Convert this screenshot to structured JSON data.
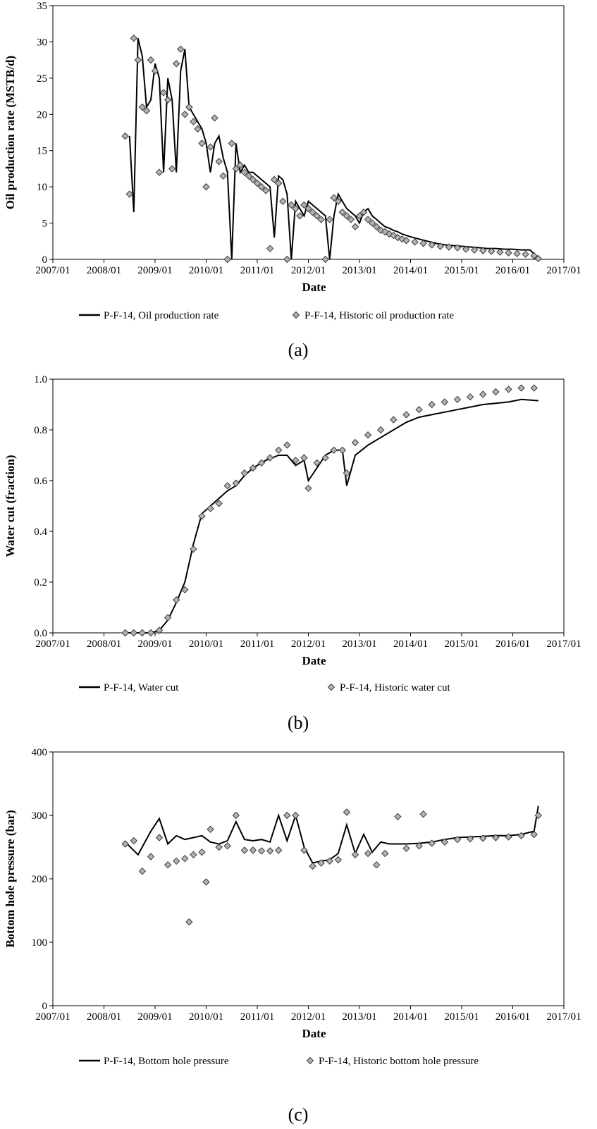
{
  "chart_data": [
    {
      "type": "line",
      "panel": "(a)",
      "xlabel": "Date",
      "ylabel": "Oil production rate (MSTB/d)",
      "x_ticks": [
        "2007/01",
        "2008/01",
        "2009/01",
        "2010/01",
        "2011/01",
        "2012/01",
        "2013/01",
        "2014/01",
        "2015/01",
        "2016/01",
        "2017/01"
      ],
      "y_ticks": [
        "0",
        "5",
        "10",
        "15",
        "20",
        "25",
        "30",
        "35"
      ],
      "xlim": [
        "2007/01",
        "2017/01"
      ],
      "ylim": [
        0,
        35
      ],
      "grid": false,
      "legend_position": "bottom",
      "series": [
        {
          "name": "P-F-14, Oil production rate",
          "style": "line",
          "x": [
            "2008/07",
            "2008/08",
            "2008/09",
            "2008/10",
            "2008/11",
            "2008/12",
            "2009/01",
            "2009/02",
            "2009/03",
            "2009/04",
            "2009/05",
            "2009/06",
            "2009/07",
            "2009/08",
            "2009/09",
            "2009/10",
            "2009/11",
            "2009/12",
            "2010/01",
            "2010/02",
            "2010/03",
            "2010/04",
            "2010/05",
            "2010/06",
            "2010/07",
            "2010/08",
            "2010/09",
            "2010/10",
            "2010/11",
            "2010/12",
            "2011/01",
            "2011/02",
            "2011/03",
            "2011/04",
            "2011/05",
            "2011/06",
            "2011/07",
            "2011/08",
            "2011/09",
            "2011/10",
            "2011/11",
            "2011/12",
            "2012/01",
            "2012/02",
            "2012/03",
            "2012/04",
            "2012/05",
            "2012/06",
            "2012/07",
            "2012/08",
            "2012/09",
            "2012/10",
            "2012/11",
            "2012/12",
            "2013/01",
            "2013/02",
            "2013/03",
            "2013/04",
            "2013/05",
            "2013/06",
            "2013/07",
            "2013/08",
            "2013/09",
            "2013/10",
            "2013/11",
            "2013/12",
            "2014/01",
            "2014/03",
            "2014/05",
            "2014/07",
            "2014/09",
            "2014/11",
            "2015/01",
            "2015/03",
            "2015/05",
            "2015/07",
            "2015/09",
            "2015/11",
            "2016/01",
            "2016/03",
            "2016/05",
            "2016/07"
          ],
          "y": [
            17,
            6.5,
            30.5,
            28,
            21,
            22,
            27,
            25,
            12,
            25,
            22,
            12,
            26,
            29,
            21,
            20,
            19,
            18,
            16,
            12,
            16,
            17,
            14,
            12,
            0,
            16,
            12,
            13,
            12,
            12,
            11.5,
            11,
            10.5,
            10,
            3,
            11.5,
            11,
            9,
            0,
            8,
            7,
            6,
            8,
            7.5,
            7,
            6.5,
            6,
            0,
            6,
            9,
            8,
            7,
            6.5,
            6,
            5,
            6.5,
            7,
            6,
            5.5,
            5,
            4.5,
            4.3,
            4,
            3.8,
            3.5,
            3.3,
            3.1,
            2.8,
            2.5,
            2.2,
            2,
            1.9,
            1.8,
            1.7,
            1.6,
            1.5,
            1.5,
            1.4,
            1.4,
            1.3,
            1.3,
            0.2
          ]
        },
        {
          "name": "P-F-14, Historic oil production rate",
          "style": "marker",
          "x": [
            "2008/06",
            "2008/07",
            "2008/08",
            "2008/09",
            "2008/10",
            "2008/11",
            "2008/12",
            "2009/01",
            "2009/02",
            "2009/03",
            "2009/04",
            "2009/05",
            "2009/06",
            "2009/07",
            "2009/08",
            "2009/09",
            "2009/10",
            "2009/11",
            "2009/12",
            "2010/01",
            "2010/02",
            "2010/03",
            "2010/04",
            "2010/05",
            "2010/06",
            "2010/07",
            "2010/08",
            "2010/09",
            "2010/10",
            "2010/11",
            "2010/12",
            "2011/01",
            "2011/02",
            "2011/03",
            "2011/04",
            "2011/05",
            "2011/06",
            "2011/07",
            "2011/08",
            "2011/09",
            "2011/10",
            "2011/11",
            "2011/12",
            "2012/01",
            "2012/02",
            "2012/03",
            "2012/04",
            "2012/05",
            "2012/06",
            "2012/07",
            "2012/08",
            "2012/09",
            "2012/10",
            "2012/11",
            "2012/12",
            "2013/01",
            "2013/02",
            "2013/03",
            "2013/04",
            "2013/05",
            "2013/06",
            "2013/07",
            "2013/08",
            "2013/09",
            "2013/10",
            "2013/11",
            "2013/12",
            "2014/02",
            "2014/04",
            "2014/06",
            "2014/08",
            "2014/10",
            "2014/12",
            "2015/02",
            "2015/04",
            "2015/06",
            "2015/08",
            "2015/10",
            "2015/12",
            "2016/02",
            "2016/04",
            "2016/06",
            "2016/07"
          ],
          "y": [
            17,
            9,
            30.5,
            27.5,
            21,
            20.5,
            27.5,
            26,
            12,
            23,
            22,
            12.5,
            27,
            29,
            20,
            21,
            19,
            18,
            16,
            10,
            15.5,
            19.5,
            13.5,
            11.5,
            0,
            16,
            12.5,
            13,
            12,
            11.5,
            11,
            10.5,
            10,
            9.5,
            1.5,
            11,
            10.5,
            8,
            0,
            7.5,
            7,
            6,
            7.5,
            7,
            6.5,
            6,
            5.5,
            0,
            5.5,
            8.5,
            8,
            6.5,
            6,
            5.5,
            4.5,
            6,
            6.5,
            5.5,
            5,
            4.5,
            4,
            3.8,
            3.5,
            3.3,
            3,
            2.8,
            2.6,
            2.4,
            2.2,
            2,
            1.8,
            1.7,
            1.6,
            1.4,
            1.3,
            1.2,
            1.1,
            1.0,
            0.9,
            0.8,
            0.7,
            0.5,
            0.1
          ]
        }
      ]
    },
    {
      "type": "line",
      "panel": "(b)",
      "xlabel": "Date",
      "ylabel": "Water cut (fraction)",
      "x_ticks": [
        "2007/01",
        "2008/01",
        "2009/01",
        "2010/01",
        "2011/01",
        "2012/01",
        "2013/01",
        "2014/01",
        "2015/01",
        "2016/01",
        "2017/01"
      ],
      "y_ticks": [
        "0.0",
        "0.2",
        "0.4",
        "0.6",
        "0.8",
        "1.0"
      ],
      "xlim": [
        "2007/01",
        "2017/01"
      ],
      "ylim": [
        0,
        1.0
      ],
      "grid": false,
      "legend_position": "bottom",
      "series": [
        {
          "name": "P-F-14, Water cut",
          "style": "line",
          "x": [
            "2008/06",
            "2008/09",
            "2008/12",
            "2009/02",
            "2009/04",
            "2009/06",
            "2009/08",
            "2009/10",
            "2009/12",
            "2010/02",
            "2010/04",
            "2010/06",
            "2010/08",
            "2010/10",
            "2010/12",
            "2011/03",
            "2011/06",
            "2011/08",
            "2011/10",
            "2011/12",
            "2012/01",
            "2012/03",
            "2012/05",
            "2012/07",
            "2012/09",
            "2012/10",
            "2012/12",
            "2013/03",
            "2013/06",
            "2013/09",
            "2013/12",
            "2014/03",
            "2014/06",
            "2014/09",
            "2014/12",
            "2015/03",
            "2015/06",
            "2015/09",
            "2015/12",
            "2016/03",
            "2016/07"
          ],
          "y": [
            0,
            0,
            0,
            0.01,
            0.05,
            0.12,
            0.2,
            0.35,
            0.47,
            0.5,
            0.53,
            0.56,
            0.58,
            0.62,
            0.65,
            0.68,
            0.7,
            0.7,
            0.66,
            0.68,
            0.6,
            0.65,
            0.7,
            0.72,
            0.72,
            0.58,
            0.7,
            0.74,
            0.77,
            0.8,
            0.83,
            0.85,
            0.86,
            0.87,
            0.88,
            0.89,
            0.9,
            0.905,
            0.91,
            0.92,
            0.915
          ]
        },
        {
          "name": "P-F-14, Historic water cut",
          "style": "marker",
          "x": [
            "2008/06",
            "2008/08",
            "2008/10",
            "2008/12",
            "2009/02",
            "2009/04",
            "2009/06",
            "2009/08",
            "2009/10",
            "2009/12",
            "2010/02",
            "2010/04",
            "2010/06",
            "2010/08",
            "2010/10",
            "2010/12",
            "2011/02",
            "2011/04",
            "2011/06",
            "2011/08",
            "2011/10",
            "2011/12",
            "2012/01",
            "2012/03",
            "2012/05",
            "2012/07",
            "2012/09",
            "2012/10",
            "2012/12",
            "2013/03",
            "2013/06",
            "2013/09",
            "2013/12",
            "2014/03",
            "2014/06",
            "2014/09",
            "2014/12",
            "2015/03",
            "2015/06",
            "2015/09",
            "2015/12",
            "2016/03",
            "2016/06"
          ],
          "y": [
            0,
            0,
            0,
            0,
            0.01,
            0.06,
            0.13,
            0.17,
            0.33,
            0.46,
            0.49,
            0.51,
            0.58,
            0.59,
            0.63,
            0.65,
            0.67,
            0.69,
            0.72,
            0.74,
            0.68,
            0.69,
            0.57,
            0.67,
            0.69,
            0.72,
            0.72,
            0.63,
            0.75,
            0.78,
            0.8,
            0.84,
            0.86,
            0.88,
            0.9,
            0.91,
            0.92,
            0.93,
            0.94,
            0.95,
            0.96,
            0.965,
            0.965
          ]
        }
      ]
    },
    {
      "type": "line",
      "panel": "(c)",
      "xlabel": "Date",
      "ylabel": "Bottom hole pressure (bar)",
      "x_ticks": [
        "2007/01",
        "2008/01",
        "2009/01",
        "2010/01",
        "2011/01",
        "2012/01",
        "2013/01",
        "2014/01",
        "2015/01",
        "2016/01",
        "2017/01"
      ],
      "y_ticks": [
        "0",
        "100",
        "200",
        "300",
        "400"
      ],
      "xlim": [
        "2007/01",
        "2017/01"
      ],
      "ylim": [
        0,
        400
      ],
      "grid": false,
      "legend_position": "bottom",
      "series": [
        {
          "name": "P-F-14, Bottom hole pressure",
          "style": "line",
          "x": [
            "2008/06",
            "2008/09",
            "2008/12",
            "2009/02",
            "2009/04",
            "2009/06",
            "2009/08",
            "2009/10",
            "2009/12",
            "2010/02",
            "2010/04",
            "2010/06",
            "2010/08",
            "2010/10",
            "2010/12",
            "2011/02",
            "2011/04",
            "2011/06",
            "2011/08",
            "2011/10",
            "2011/12",
            "2012/02",
            "2012/04",
            "2012/06",
            "2012/08",
            "2012/10",
            "2012/12",
            "2013/02",
            "2013/04",
            "2013/06",
            "2013/08",
            "2013/10",
            "2013/12",
            "2014/03",
            "2014/06",
            "2014/09",
            "2014/12",
            "2015/03",
            "2015/06",
            "2015/09",
            "2015/12",
            "2016/03",
            "2016/06",
            "2016/07"
          ],
          "y": [
            258,
            238,
            275,
            295,
            255,
            268,
            262,
            265,
            268,
            258,
            255,
            260,
            290,
            262,
            260,
            262,
            258,
            300,
            260,
            300,
            250,
            225,
            228,
            230,
            240,
            285,
            240,
            270,
            242,
            258,
            255,
            255,
            255,
            256,
            258,
            262,
            265,
            266,
            267,
            268,
            268,
            270,
            275,
            315
          ]
        },
        {
          "name": "P-F-14, Historic bottom hole pressure",
          "style": "marker",
          "x": [
            "2008/06",
            "2008/08",
            "2008/10",
            "2008/12",
            "2009/02",
            "2009/04",
            "2009/06",
            "2009/08",
            "2009/09",
            "2009/10",
            "2009/12",
            "2010/01",
            "2010/02",
            "2010/04",
            "2010/06",
            "2010/08",
            "2010/10",
            "2010/12",
            "2011/02",
            "2011/04",
            "2011/06",
            "2011/08",
            "2011/10",
            "2011/12",
            "2012/02",
            "2012/04",
            "2012/06",
            "2012/08",
            "2012/10",
            "2012/12",
            "2013/03",
            "2013/05",
            "2013/07",
            "2013/10",
            "2013/12",
            "2014/03",
            "2014/04",
            "2014/06",
            "2014/09",
            "2014/12",
            "2015/03",
            "2015/06",
            "2015/09",
            "2015/12",
            "2016/03",
            "2016/06",
            "2016/07"
          ],
          "y": [
            255,
            260,
            212,
            235,
            265,
            222,
            228,
            232,
            132,
            238,
            242,
            195,
            278,
            250,
            252,
            300,
            245,
            245,
            244,
            244,
            245,
            300,
            300,
            245,
            220,
            225,
            228,
            230,
            305,
            238,
            240,
            222,
            240,
            298,
            248,
            252,
            302,
            256,
            258,
            262,
            263,
            264,
            265,
            266,
            268,
            270,
            300
          ]
        }
      ]
    }
  ],
  "captions": [
    "(a)",
    "(b)",
    "(c)"
  ],
  "colors": {
    "line": "#000000",
    "marker_fill": "#b3b3b3",
    "marker_stroke": "#3a3a3a"
  }
}
